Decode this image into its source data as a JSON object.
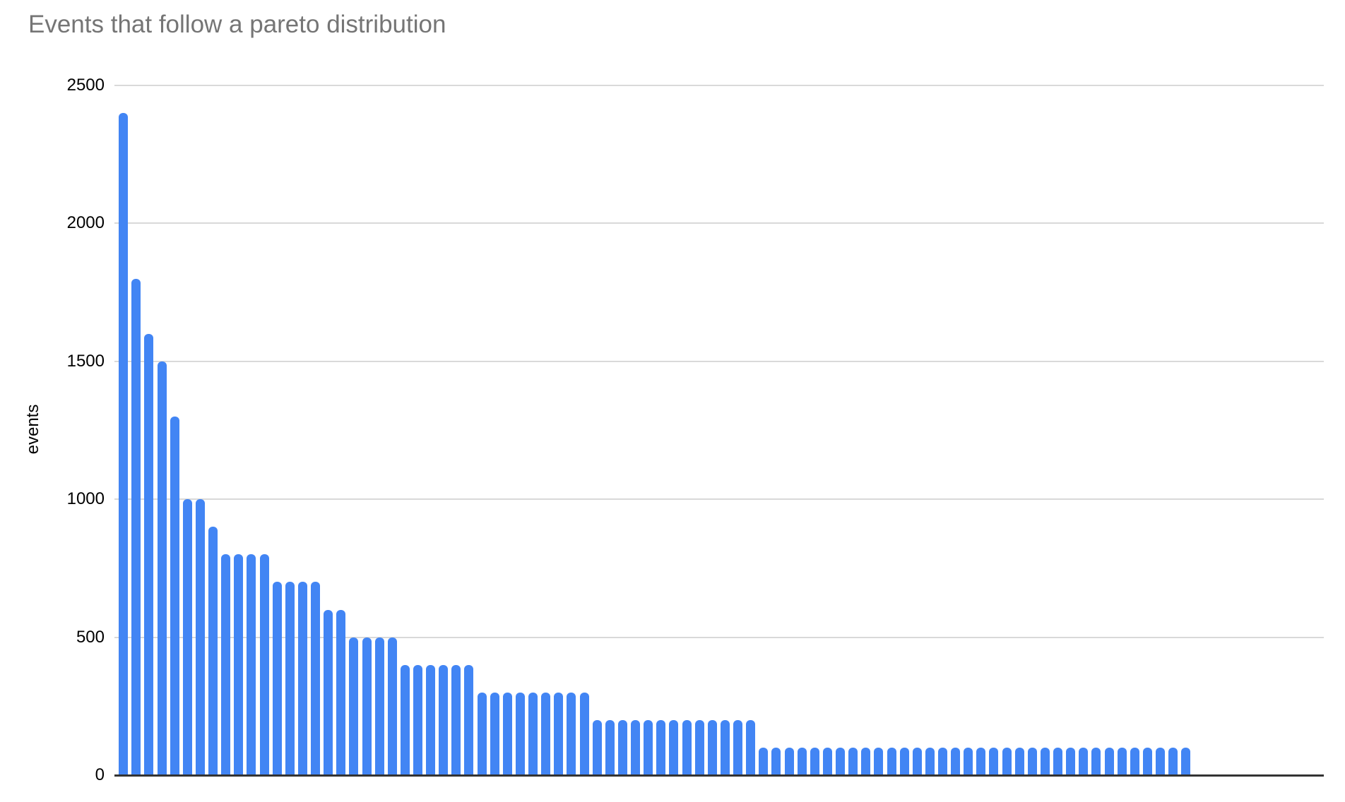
{
  "chart_data": {
    "type": "bar",
    "title": "Events that follow a pareto distribution",
    "ylabel": "events",
    "xlabel": "",
    "x_tick_labels_visible": false,
    "legend": "none",
    "grid": "horizontal",
    "ylim": [
      0,
      2500
    ],
    "yticks": [
      0,
      500,
      1000,
      1500,
      2000,
      2500
    ],
    "values": [
      2400,
      1800,
      1600,
      1500,
      1300,
      1000,
      1000,
      900,
      800,
      800,
      800,
      800,
      700,
      700,
      700,
      700,
      600,
      600,
      500,
      500,
      500,
      500,
      400,
      400,
      400,
      400,
      400,
      400,
      300,
      300,
      300,
      300,
      300,
      300,
      300,
      300,
      300,
      200,
      200,
      200,
      200,
      200,
      200,
      200,
      200,
      200,
      200,
      200,
      200,
      200,
      100,
      100,
      100,
      100,
      100,
      100,
      100,
      100,
      100,
      100,
      100,
      100,
      100,
      100,
      100,
      100,
      100,
      100,
      100,
      100,
      100,
      100,
      100,
      100,
      100,
      100,
      100,
      100,
      100,
      100,
      100,
      100,
      100,
      100
    ],
    "bar_color": "#4285f4",
    "gridline_color": "#d9d9d9",
    "axis_color": "#333333",
    "title_color": "#757575",
    "tick_label_color": "#000000"
  }
}
